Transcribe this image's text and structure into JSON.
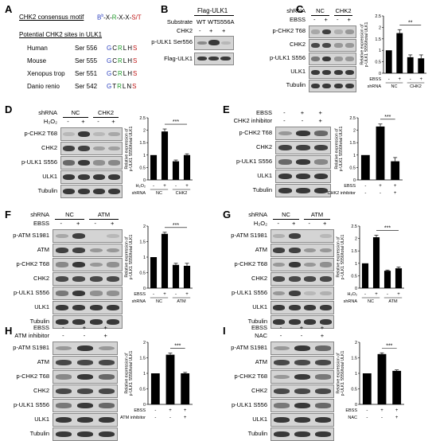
{
  "panels": {
    "A": {
      "label": "A",
      "motif_title": "CHK2 consensus motif",
      "motif": [
        "B",
        "b",
        "-X-",
        "R",
        "-X-X-",
        "S/T"
      ],
      "sites_title": "Potential CHK2 sites in ULK1",
      "sites": [
        {
          "species": "Human",
          "site": "Ser 556",
          "seq": [
            "G",
            "C",
            "R",
            "L",
            "H",
            "S"
          ]
        },
        {
          "species": "Mouse",
          "site": "Ser 555",
          "seq": [
            "G",
            "C",
            "R",
            "L",
            "H",
            "S"
          ]
        },
        {
          "species": "Xenopus trop",
          "site": "Ser 551",
          "seq": [
            "G",
            "C",
            "R",
            "L",
            "H",
            "S"
          ]
        },
        {
          "species": "Danio renio",
          "site": "Ser 542",
          "seq": [
            "G",
            "T",
            "R",
            "L",
            "N",
            "S"
          ]
        }
      ]
    },
    "B": {
      "label": "B",
      "header": "Flag-ULK1",
      "substrate_label": "Substrate",
      "substrate": [
        "WT",
        "WT",
        "S556A"
      ],
      "chk2_label": "CHK2",
      "chk2": [
        "-",
        "+",
        "+"
      ],
      "blots": [
        "p-ULK1 Ser556",
        "Flag-ULK1"
      ]
    },
    "C": {
      "label": "C",
      "shrna_label": "shRNA",
      "groups": [
        "NC",
        "CHK2"
      ],
      "treat_label": "EBSS",
      "treat": [
        "-",
        "+",
        "-",
        "+"
      ],
      "blots": [
        "p-CHK2 T68",
        "CHK2",
        "p-ULK1 S556",
        "ULK1",
        "Tubulin"
      ],
      "sig": "**"
    },
    "D": {
      "label": "D",
      "shrna_label": "shRNA",
      "groups": [
        "NC",
        "CHK2"
      ],
      "treat_label": "H₂O₂",
      "treat": [
        "-",
        "+",
        "-",
        "+"
      ],
      "blots": [
        "p-CHK2 T68",
        "CHK2",
        "p-ULK1 S556",
        "ULK1",
        "Tubulin"
      ],
      "sig": "***"
    },
    "E": {
      "label": "E",
      "treat1_label": "EBSS",
      "treat1": [
        "-",
        "+",
        "+"
      ],
      "treat2_label": "CHK2 inhibitor",
      "treat2": [
        "-",
        "-",
        "+"
      ],
      "blots": [
        "p-CHK2 T68",
        "CHK2",
        "p-ULK1 S556",
        "ULK1",
        "Tubulin"
      ],
      "sig": "***"
    },
    "F": {
      "label": "F",
      "shrna_label": "shRNA",
      "groups": [
        "NC",
        "ATM"
      ],
      "treat_label": "EBSS",
      "treat": [
        "-",
        "+",
        "-",
        "+"
      ],
      "blots": [
        "p-ATM S1981",
        "ATM",
        "p-CHK2 T68",
        "CHK2",
        "p-ULK1 S556",
        "ULK1",
        "Tubulin"
      ],
      "sig": "***"
    },
    "G": {
      "label": "G",
      "shrna_label": "shRNA",
      "groups": [
        "NC",
        "ATM"
      ],
      "treat_label": "H₂O₂",
      "treat": [
        "-",
        "+",
        "-",
        "+"
      ],
      "blots": [
        "p-ATM S1981",
        "ATM",
        "p-CHK2 T68",
        "CHK2",
        "p-ULK1 S556",
        "ULK1",
        "Tubulin"
      ],
      "sig": "***"
    },
    "H": {
      "label": "H",
      "treat1_label": "EBSS",
      "treat1": [
        "-",
        "+",
        "+"
      ],
      "treat2_label": "ATM inhibitor",
      "treat2": [
        "-",
        "-",
        "+"
      ],
      "blots": [
        "p-ATM S1981",
        "ATM",
        "p-CHK2 T68",
        "CHK2",
        "p-ULK1 S556",
        "ULK1",
        "Tubulin"
      ],
      "sig": "***"
    },
    "I": {
      "label": "I",
      "treat1_label": "EBSS",
      "treat1": [
        "-",
        "+",
        "+"
      ],
      "treat2_label": "NAC",
      "treat2": [
        "-",
        "-",
        "+"
      ],
      "blots": [
        "p-ATM S1981",
        "ATM",
        "p-CHK2 T68",
        "CHK2",
        "p-ULK1 S556",
        "ULK1",
        "Tubulin"
      ],
      "sig": "***"
    }
  },
  "chart_data": [
    {
      "panel": "C",
      "type": "bar",
      "ylabel": "Relative expression of p-ULK1 S556/total ULK1",
      "ylim": [
        0,
        2.5
      ],
      "yticks": [
        0,
        0.5,
        1,
        1.5,
        2,
        2.5
      ],
      "categories": [
        "-",
        "+",
        "-",
        "+"
      ],
      "values": [
        1.0,
        1.75,
        0.7,
        0.65
      ],
      "errors": [
        0,
        0.15,
        0.1,
        0.15
      ],
      "row1_label": "EBSS",
      "row2_label": "shRNA",
      "groups": [
        "NC",
        "CHK2"
      ]
    },
    {
      "panel": "D",
      "type": "bar",
      "ylabel": "Relative expression of p-ULK1 S556/total ULK1",
      "ylim": [
        0,
        2.5
      ],
      "yticks": [
        0,
        0.5,
        1,
        1.5,
        2,
        2.5
      ],
      "categories": [
        "-",
        "+",
        "-",
        "+"
      ],
      "values": [
        1.0,
        1.95,
        0.75,
        1.0
      ],
      "errors": [
        0,
        0.1,
        0.05,
        0.05
      ],
      "row1_label": "H₂O₂",
      "row2_label": "shRNA",
      "groups": [
        "NC",
        "CHK2"
      ]
    },
    {
      "panel": "E",
      "type": "bar",
      "ylabel": "Relative expression of p-ULK1 S556/total ULK1",
      "ylim": [
        0,
        2.5
      ],
      "yticks": [
        0,
        0.5,
        1,
        1.5,
        2,
        2.5
      ],
      "categories": [
        "-",
        "+",
        "+"
      ],
      "values": [
        1.0,
        2.15,
        0.75
      ],
      "errors": [
        0,
        0.1,
        0.15
      ],
      "row1_label": "EBSS",
      "row1": [
        "-",
        "+",
        "+"
      ],
      "row2_label": "CHK2 inhibitor",
      "row2": [
        "-",
        "-",
        "+"
      ]
    },
    {
      "panel": "F",
      "type": "bar",
      "ylabel": "Relative expression of p-ULK1 S556/total ULK1",
      "ylim": [
        0,
        2.0
      ],
      "yticks": [
        0,
        0.5,
        1,
        1.5,
        2
      ],
      "categories": [
        "-",
        "+",
        "-",
        "+"
      ],
      "values": [
        1.0,
        1.75,
        0.75,
        0.72
      ],
      "errors": [
        0,
        0.05,
        0.05,
        0.08
      ],
      "row1_label": "EBSS",
      "row2_label": "shRNA",
      "groups": [
        "NC",
        "ATM"
      ]
    },
    {
      "panel": "G",
      "type": "bar",
      "ylabel": "Relative expression of p-ULK1 S556/total ULK1",
      "ylim": [
        0,
        2.5
      ],
      "yticks": [
        0,
        0.5,
        1,
        1.5,
        2,
        2.5
      ],
      "categories": [
        "-",
        "+",
        "-",
        "+"
      ],
      "values": [
        1.0,
        2.05,
        0.7,
        0.8
      ],
      "errors": [
        0,
        0.08,
        0.03,
        0.05
      ],
      "row1_label": "H₂O₂",
      "row2_label": "shRNA",
      "groups": [
        "NC",
        "ATM"
      ]
    },
    {
      "panel": "H",
      "type": "bar",
      "ylabel": "Relative expression of p-ULK1 S556/total ULK1",
      "ylim": [
        0,
        2.0
      ],
      "yticks": [
        0,
        0.5,
        1,
        1.5,
        2
      ],
      "categories": [
        "-",
        "+",
        "+"
      ],
      "values": [
        1.0,
        1.6,
        1.0
      ],
      "errors": [
        0,
        0.05,
        0.03
      ],
      "row1_label": "EBSS",
      "row1": [
        "-",
        "+",
        "+"
      ],
      "row2_label": "ATM inhibitor",
      "row2": [
        "-",
        "-",
        "+"
      ]
    },
    {
      "panel": "I",
      "type": "bar",
      "ylabel": "Relative expression of p-ULK1 S556/total ULK1",
      "ylim": [
        0,
        2.0
      ],
      "yticks": [
        0,
        0.5,
        1,
        1.5,
        2
      ],
      "categories": [
        "-",
        "+",
        "+"
      ],
      "values": [
        1.0,
        1.62,
        1.08
      ],
      "errors": [
        0,
        0.04,
        0.03
      ],
      "row1_label": "EBSS",
      "row1": [
        "-",
        "+",
        "+"
      ],
      "row2_label": "NAC",
      "row2": [
        "-",
        "-",
        "+"
      ]
    }
  ]
}
